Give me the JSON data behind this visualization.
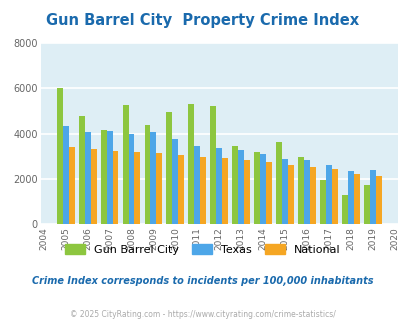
{
  "title": "Gun Barrel City  Property Crime Index",
  "years": [
    2004,
    2005,
    2006,
    2007,
    2008,
    2009,
    2010,
    2011,
    2012,
    2013,
    2014,
    2015,
    2016,
    2017,
    2018,
    2019,
    2020
  ],
  "gun_barrel_city": [
    null,
    6020,
    4780,
    4150,
    5260,
    4360,
    4950,
    5300,
    5200,
    3460,
    3170,
    3620,
    2950,
    1950,
    1300,
    1750,
    null
  ],
  "texas": [
    null,
    4340,
    4060,
    4130,
    3980,
    4060,
    3780,
    3470,
    3350,
    3270,
    3100,
    2870,
    2820,
    2620,
    2340,
    2380,
    null
  ],
  "national": [
    null,
    3420,
    3330,
    3250,
    3200,
    3130,
    3050,
    2970,
    2940,
    2830,
    2730,
    2620,
    2520,
    2440,
    2220,
    2140,
    null
  ],
  "colors": {
    "gun_barrel_city": "#8dc63f",
    "texas": "#4da6e8",
    "national": "#f5a623"
  },
  "ylim": [
    0,
    8000
  ],
  "yticks": [
    0,
    2000,
    4000,
    6000,
    8000
  ],
  "bg_color": "#deeef5",
  "grid_color": "#ffffff",
  "title_color": "#1a6aad",
  "legend_labels": [
    "Gun Barrel City",
    "Texas",
    "National"
  ],
  "footnote1": "Crime Index corresponds to incidents per 100,000 inhabitants",
  "footnote2": "© 2025 CityRating.com - https://www.cityrating.com/crime-statistics/",
  "bar_width": 0.27
}
